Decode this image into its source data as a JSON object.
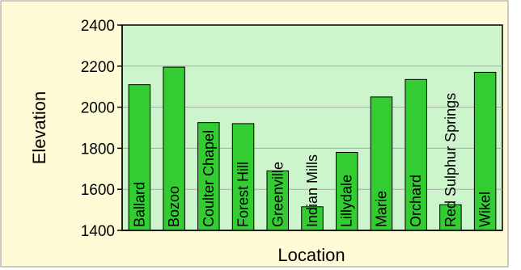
{
  "chart_data": {
    "type": "bar",
    "title": "",
    "xlabel": "Location",
    "ylabel": "Elevation",
    "ylim": [
      1400,
      2400
    ],
    "yticks": [
      1400,
      1600,
      1800,
      2000,
      2200,
      2400
    ],
    "grid": true,
    "categories": [
      "Ballard",
      "Bozoo",
      "Coulter Chapel",
      "Forest Hill",
      "Greenville",
      "Indian Mills",
      "Lillydale",
      "Marie",
      "Orchard",
      "Red Sulphur Springs",
      "Wikel"
    ],
    "values": [
      2110,
      2195,
      1925,
      1920,
      1690,
      1515,
      1780,
      2050,
      2135,
      1525,
      2170
    ]
  },
  "colors": {
    "page_background": "#fffbd6",
    "plot_background": "#ccf5cc",
    "bar_fill": "#33cc33",
    "bar_stroke": "#000000",
    "gridline": "#aaaaaa"
  }
}
